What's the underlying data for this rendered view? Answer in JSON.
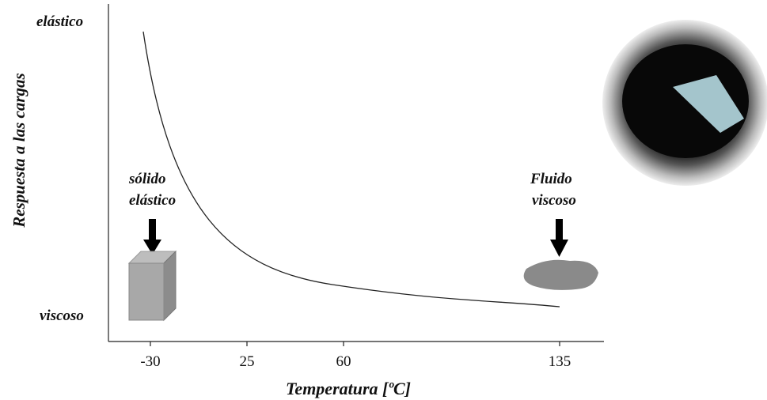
{
  "y_axis": {
    "label": "Respuesta a las cargas",
    "top": "elástico",
    "bottom": "viscoso"
  },
  "x_axis": {
    "label": "Temperatura [ºC]",
    "ticks": [
      "-30",
      "25",
      "60",
      "135"
    ]
  },
  "annotations": {
    "left": [
      "sólido",
      "elástico"
    ],
    "right": [
      "Fluido",
      "viscoso"
    ]
  }
}
